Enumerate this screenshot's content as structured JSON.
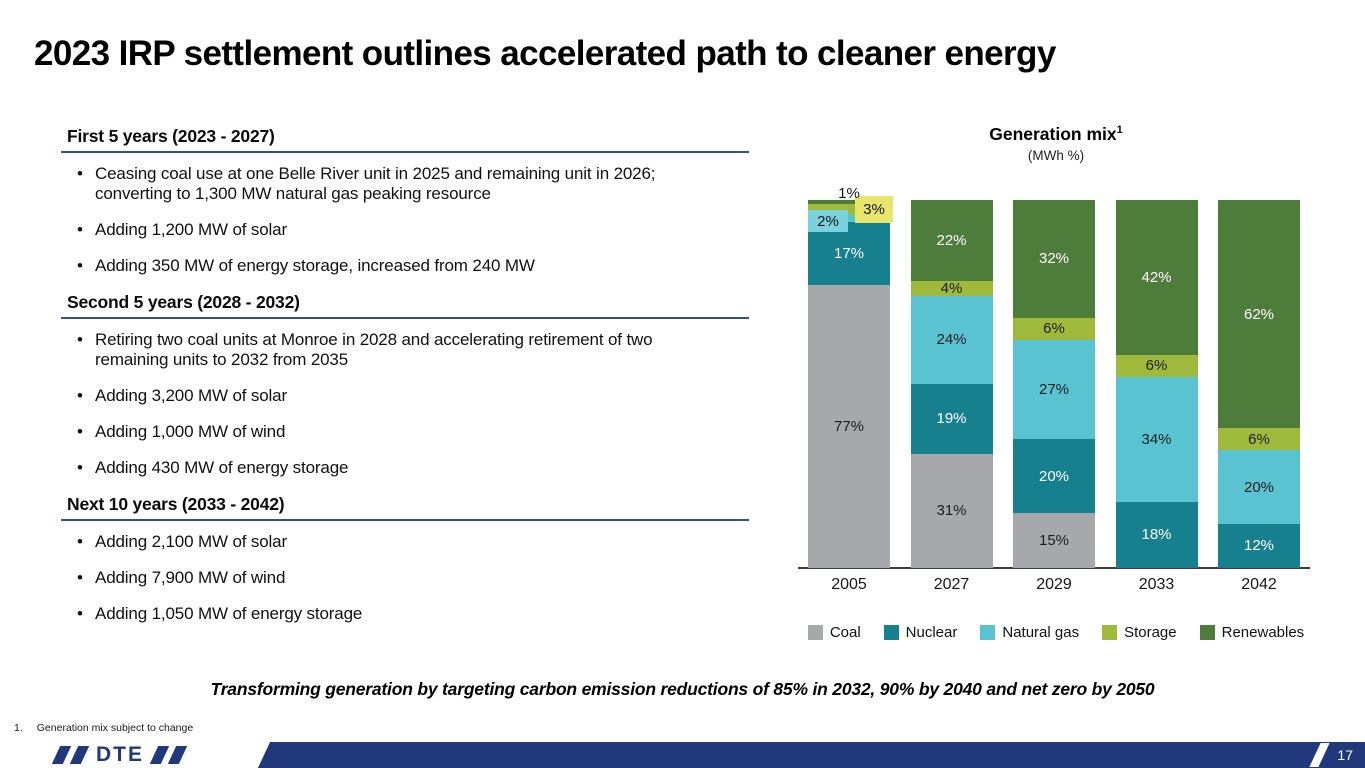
{
  "title": "2023 IRP settlement outlines accelerated path to cleaner energy",
  "sections": [
    {
      "header": "First 5 years (2023 - 2027)",
      "bullets": [
        "Ceasing coal use at one Belle River unit in 2025 and remaining unit in 2026; converting to 1,300 MW natural gas peaking resource",
        "Adding 1,200 MW of solar",
        "Adding 350 MW of energy storage, increased from 240 MW"
      ]
    },
    {
      "header": "Second 5 years (2028 - 2032)",
      "bullets": [
        "Retiring two coal units at Monroe in 2028 and accelerating retirement of two remaining units to 2032 from 2035",
        "Adding 3,200 MW of solar",
        "Adding 1,000 MW of wind",
        "Adding 430 MW of energy storage"
      ]
    },
    {
      "header": "Next 10 years (2033 - 2042)",
      "bullets": [
        "Adding 2,100 MW of solar",
        "Adding 7,900 MW of wind",
        "Adding 1,050 MW of energy storage"
      ]
    }
  ],
  "chart_data": {
    "type": "bar",
    "subtype": "stacked-100",
    "title": "Generation mix",
    "title_sup": "1",
    "subtitle": "(MWh %)",
    "unit": "%",
    "ylim": [
      0,
      100
    ],
    "grid": false,
    "legend_position": "bottom",
    "categories": [
      "2005",
      "2027",
      "2029",
      "2033",
      "2042"
    ],
    "series": [
      {
        "name": "Coal",
        "color": "#a6a8ab",
        "label_color": "#1d1d1d",
        "values": [
          77,
          31,
          15,
          0,
          0
        ]
      },
      {
        "name": "Nuclear",
        "color": "#17808f",
        "label_color": "#ffffff",
        "values": [
          17,
          19,
          20,
          18,
          12
        ]
      },
      {
        "name": "Natural gas",
        "color": "#5ac3d2",
        "label_color": "#1d1d1d",
        "values": [
          2,
          24,
          27,
          34,
          20
        ]
      },
      {
        "name": "Storage",
        "color": "#9fba3b",
        "label_color": "#1d1d1d",
        "values": [
          3,
          4,
          6,
          6,
          6
        ]
      },
      {
        "name": "Renewables",
        "color": "#4e7c3a",
        "label_color": "#ffffff",
        "values": [
          1,
          22,
          32,
          42,
          62
        ]
      }
    ],
    "label_overrides": {
      "2005": {
        "Natural gas": "box-left",
        "Storage": "box-right",
        "Renewables": "above"
      }
    },
    "label_box_colors": {
      "box-left": "#7ad2de",
      "box-right": "#e9e66e"
    }
  },
  "takeaway": "Transforming generation by targeting carbon emission reductions of 85% in 2032, 90% by 2040 and net zero by 2050",
  "footnote": {
    "marker": "1.",
    "text": "Generation mix subject to change"
  },
  "footer": {
    "logo": "DTE",
    "page": "17"
  },
  "colors": {
    "accent_navy": "#21397a",
    "rule_navy": "#35517f"
  }
}
